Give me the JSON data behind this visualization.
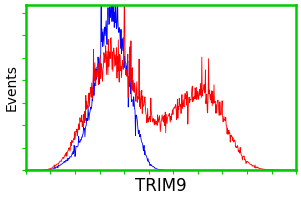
{
  "title": "",
  "xlabel": "TRIM9",
  "ylabel": "Events",
  "background_color": "#ffffff",
  "border_color": "#00cc00",
  "blue_color": "#0000ff",
  "red_color": "#ff0000",
  "xlabel_fontsize": 12,
  "ylabel_fontsize": 10,
  "figsize": [
    3.01,
    2.0
  ],
  "dpi": 100
}
